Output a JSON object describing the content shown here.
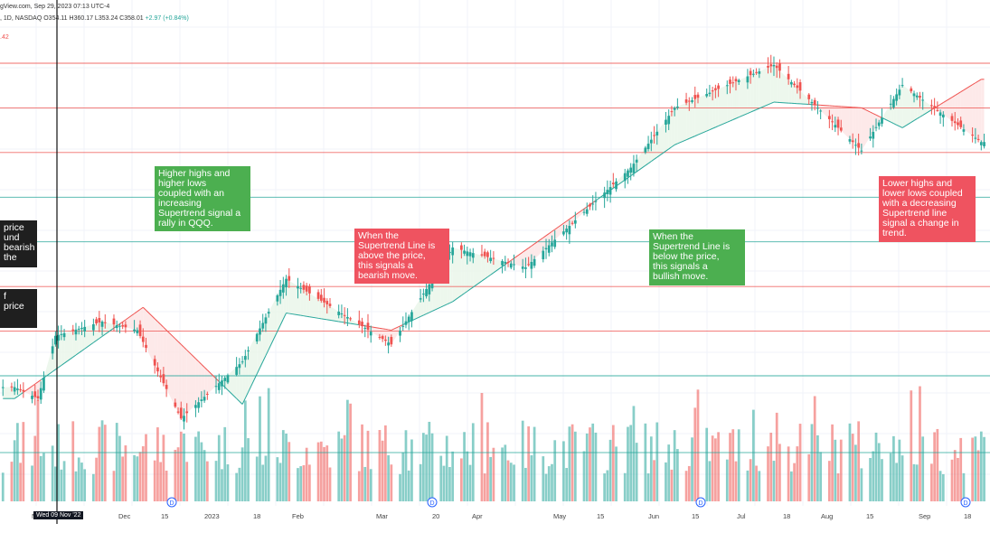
{
  "header": {
    "line1": "gView.com, Sep 29, 2023 07:13 UTC-4",
    "line2_prefix": ", 1D, NASDAQ  O354.11  H360.17  L353.24  C358.01",
    "line2_change": " +2.97 (+0.84%)",
    "line3": ".42"
  },
  "annotations": {
    "bullish_trend": "Higher highs and\nhigher lows\ncoupled with an\nincreasing\nSupertrend signal a\nrally in QQQ.",
    "line_above": "When the\nSupertrend Line is\nabove the price,\nthis signals a\nbearish move.",
    "line_below": "When the\nSupertrend Line is\nbelow the price,\nthis signals a\nbullish move.",
    "bearish_trend": "Lower highs and\nlower lows coupled\nwith a decreasing\nSupertrend line\nsignal a change in\ntrend.",
    "left_top": "price\nund\nbearish\n the",
    "left_bottom": "f\nprice"
  },
  "cursor_label": "Wed 09 Nov '22",
  "x_axis": {
    "ticks": [
      "N",
      "Dec",
      "15",
      "2023",
      "18",
      "Feb",
      "Mar",
      "20",
      "Apr",
      "May",
      "15",
      "Jun",
      "15",
      "Jul",
      "18",
      "Aug",
      "15",
      "Sep",
      "18"
    ]
  },
  "dividend_marker": "D",
  "colors": {
    "up": "#26a69a",
    "down": "#ef5350",
    "up_fill": "#e8f5e9",
    "down_fill": "#fde4e4",
    "green_note": "#4caf50",
    "red_note": "#ef5360"
  },
  "chart_data": {
    "type": "candlestick",
    "ticker": "QQQ",
    "ylim": [
      250,
      385
    ],
    "series": [
      {
        "date": "2022-11-01",
        "close": 272
      },
      {
        "date": "2022-11-09",
        "close": 268
      },
      {
        "date": "2022-11-15",
        "close": 290
      },
      {
        "date": "2022-12-01",
        "close": 295
      },
      {
        "date": "2022-12-13",
        "close": 292
      },
      {
        "date": "2022-12-28",
        "close": 261
      },
      {
        "date": "2023-01-18",
        "close": 281
      },
      {
        "date": "2023-02-02",
        "close": 310
      },
      {
        "date": "2023-03-10",
        "close": 287
      },
      {
        "date": "2023-03-31",
        "close": 321
      },
      {
        "date": "2023-04-25",
        "close": 314
      },
      {
        "date": "2023-05-31",
        "close": 349
      },
      {
        "date": "2023-06-15",
        "close": 370
      },
      {
        "date": "2023-07-19",
        "close": 385
      },
      {
        "date": "2023-08-18",
        "close": 355
      },
      {
        "date": "2023-09-01",
        "close": 378
      },
      {
        "date": "2023-09-28",
        "close": 358
      }
    ],
    "supertrend": [
      {
        "date": "2022-11-01",
        "value": 268
      },
      {
        "date": "2022-12-15",
        "value": 300
      },
      {
        "date": "2023-01-18",
        "value": 266
      },
      {
        "date": "2023-02-02",
        "value": 298
      },
      {
        "date": "2023-03-10",
        "value": 292
      },
      {
        "date": "2023-03-31",
        "value": 302
      },
      {
        "date": "2023-06-15",
        "value": 357
      },
      {
        "date": "2023-07-19",
        "value": 372
      },
      {
        "date": "2023-08-18",
        "value": 370
      },
      {
        "date": "2023-09-01",
        "value": 363
      },
      {
        "date": "2023-09-28",
        "value": 380
      }
    ],
    "horizontal_levels": [
      {
        "color": "#ef5350"
      },
      {
        "color": "#ef5350"
      },
      {
        "color": "#ef5350"
      },
      {
        "color": "#26a69a"
      },
      {
        "color": "#26a69a"
      },
      {
        "color": "#ef5350"
      },
      {
        "color": "#ef5350"
      },
      {
        "color": "#26a69a"
      }
    ]
  }
}
